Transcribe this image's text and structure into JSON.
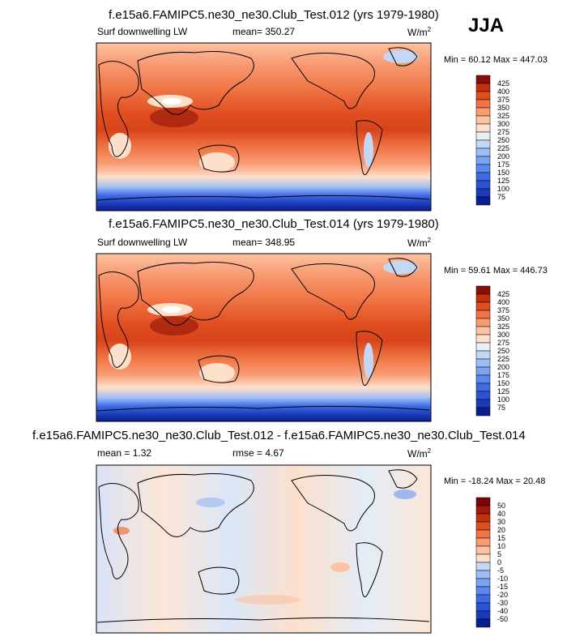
{
  "season": "JJA",
  "panels": [
    {
      "title": "f.e15a6.FAMIPC5.ne30_ne30.Club_Test.012 (yrs 1979-1980)",
      "left_label": "Surf downwelling LW",
      "mid_label": "mean= 350.27",
      "units_base": "W/m",
      "units_exp": "2",
      "minmax": "Min =  60.12 Max = 447.03"
    },
    {
      "title": "f.e15a6.FAMIPC5.ne30_ne30.Club_Test.014 (yrs 1979-1980)",
      "left_label": "Surf downwelling LW",
      "mid_label": "mean= 348.95",
      "units_base": "W/m",
      "units_exp": "2",
      "minmax": "Min =  59.61 Max = 446.73"
    },
    {
      "title": "f.e15a6.FAMIPC5.ne30_ne30.Club_Test.012 - f.e15a6.FAMIPC5.ne30_ne30.Club_Test.014",
      "left_label": "mean =   1.32",
      "mid_label": "rmse =   4.67",
      "units_base": "W/m",
      "units_exp": "2",
      "minmax": "Min = -18.24 Max =  20.48"
    }
  ],
  "chart_data": [
    {
      "type": "heatmap",
      "title": "f.e15a6.FAMIPC5.ne30_ne30.Club_Test.012 (yrs 1979-1980)",
      "variable": "Surf downwelling LW",
      "units": "W/m2",
      "mean": 350.27,
      "min": 60.12,
      "max": 447.03,
      "colorbar_levels": [
        75,
        100,
        125,
        150,
        175,
        200,
        225,
        250,
        275,
        300,
        325,
        350,
        375,
        400,
        425
      ],
      "colorbar_colors": [
        "#0a1f8f",
        "#1a3bb8",
        "#2952d6",
        "#3d6be6",
        "#5a88ee",
        "#7ba3f2",
        "#9dbef5",
        "#c3d8f7",
        "#e8eef6",
        "#fde0cc",
        "#fcc2a2",
        "#f89c74",
        "#f07444",
        "#e04e20",
        "#c3300e",
        "#8b0d06"
      ]
    },
    {
      "type": "heatmap",
      "title": "f.e15a6.FAMIPC5.ne30_ne30.Club_Test.014 (yrs 1979-1980)",
      "variable": "Surf downwelling LW",
      "units": "W/m2",
      "mean": 348.95,
      "min": 59.61,
      "max": 446.73,
      "colorbar_levels": [
        75,
        100,
        125,
        150,
        175,
        200,
        225,
        250,
        275,
        300,
        325,
        350,
        375,
        400,
        425
      ],
      "colorbar_colors": [
        "#0a1f8f",
        "#1a3bb8",
        "#2952d6",
        "#3d6be6",
        "#5a88ee",
        "#7ba3f2",
        "#9dbef5",
        "#c3d8f7",
        "#e8eef6",
        "#fde0cc",
        "#fcc2a2",
        "#f89c74",
        "#f07444",
        "#e04e20",
        "#c3300e",
        "#8b0d06"
      ]
    },
    {
      "type": "heatmap",
      "title": "f.e15a6.FAMIPC5.ne30_ne30.Club_Test.012 - f.e15a6.FAMIPC5.ne30_ne30.Club_Test.014",
      "units": "W/m2",
      "mean": 1.32,
      "rmse": 4.67,
      "min": -18.24,
      "max": 20.48,
      "colorbar_levels": [
        -50,
        -40,
        -30,
        -20,
        -15,
        -10,
        -5,
        0,
        5,
        10,
        15,
        20,
        30,
        40,
        50
      ],
      "colorbar_colors": [
        "#0a1f8f",
        "#1a3bb8",
        "#2952d6",
        "#3d6be6",
        "#5a88ee",
        "#7ba3f2",
        "#9dbef5",
        "#c3d8f7",
        "#fde0cc",
        "#fcc2a2",
        "#f89c74",
        "#f07444",
        "#e04e20",
        "#c3300e",
        "#a3180a",
        "#7a0403"
      ]
    }
  ]
}
